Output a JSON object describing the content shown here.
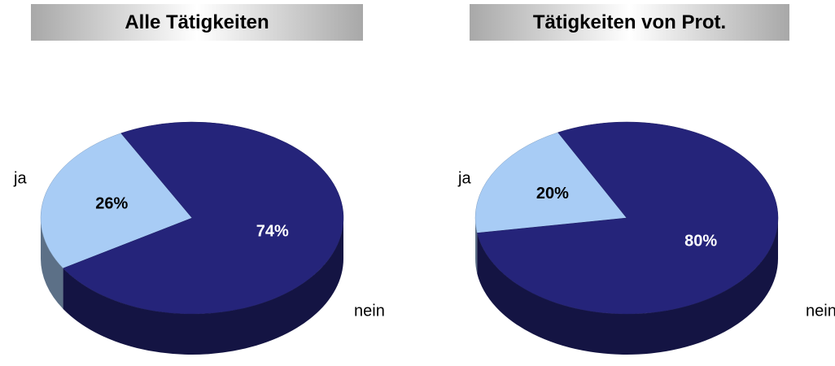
{
  "chart_data": [
    {
      "type": "pie",
      "title": "Alle Tätigkeiten",
      "categories": [
        "ja",
        "nein"
      ],
      "values": [
        26,
        74
      ],
      "value_labels": [
        "26%",
        "74%"
      ],
      "colors": [
        "#a8ccf5",
        "#25247a"
      ]
    },
    {
      "type": "pie",
      "title": "Tätigkeiten von Prot.",
      "categories": [
        "ja",
        "nein"
      ],
      "values": [
        20,
        80
      ],
      "value_labels": [
        "20%",
        "80%"
      ],
      "colors": [
        "#a8ccf5",
        "#25247a"
      ]
    }
  ]
}
